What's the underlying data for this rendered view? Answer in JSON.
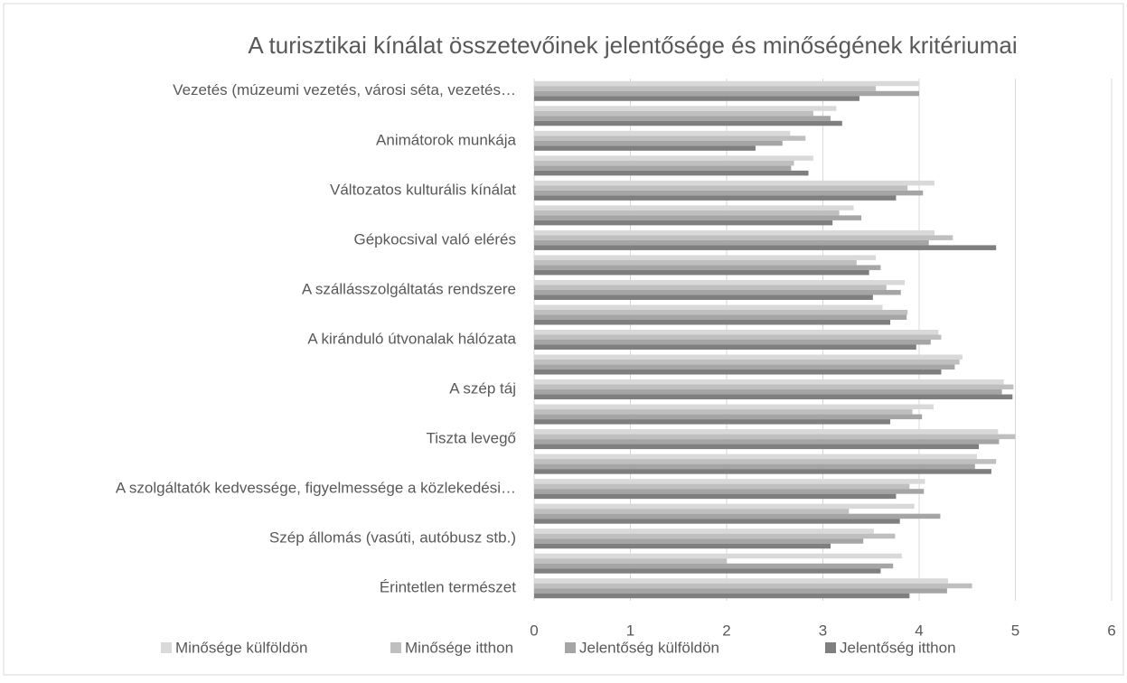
{
  "chart_data": {
    "type": "barh",
    "title": "A turisztikai kínálat összetevőinek jelentősége és minőségének kritériumai",
    "categories": [
      "Vezetés (múzeumi vezetés, városi séta, vezetés…",
      null,
      "Animátorok munkája",
      null,
      "Változatos kulturális kínálat",
      null,
      "Gépkocsival való elérés",
      null,
      "A szállásszolgáltatás rendszere",
      null,
      "A kiránduló útvonalak hálózata",
      null,
      "A szép táj",
      null,
      "Tiszta levegő",
      null,
      "A szolgáltatók kedvessége, figyelmessége a közlekedési…",
      null,
      "Szép állomás (vasúti, autóbusz stb.)",
      null,
      "Érintetlen természet"
    ],
    "series": [
      {
        "name": "Minősége külföldön",
        "color": "#d9d9d9",
        "values": [
          4.0,
          3.14,
          2.66,
          2.9,
          4.16,
          3.32,
          4.16,
          3.55,
          3.85,
          3.62,
          4.2,
          4.45,
          4.88,
          4.15,
          4.82,
          4.6,
          4.06,
          3.95,
          3.53,
          3.82,
          4.3
        ]
      },
      {
        "name": "Minősége itthon",
        "color": "#bfbfbf",
        "values": [
          3.55,
          2.9,
          2.82,
          2.7,
          3.88,
          3.17,
          4.35,
          3.35,
          3.66,
          3.88,
          4.23,
          4.42,
          4.98,
          3.93,
          5.0,
          4.8,
          3.9,
          3.27,
          3.75,
          2.0,
          4.55
        ]
      },
      {
        "name": "Jelentőség külföldön",
        "color": "#a5a5a5",
        "values": [
          4.0,
          3.08,
          2.58,
          2.67,
          4.04,
          3.4,
          4.1,
          3.6,
          3.81,
          3.87,
          4.12,
          4.37,
          4.86,
          4.03,
          4.83,
          4.58,
          4.05,
          4.22,
          3.42,
          3.73,
          4.29
        ]
      },
      {
        "name": "Jelentőség itthon",
        "color": "#7f7f7f",
        "values": [
          3.38,
          3.2,
          2.3,
          2.85,
          3.76,
          3.1,
          4.8,
          3.48,
          3.52,
          3.7,
          3.97,
          4.23,
          4.97,
          3.7,
          4.62,
          4.75,
          3.76,
          3.8,
          3.08,
          3.6,
          3.9
        ]
      }
    ],
    "xlim": [
      0,
      6
    ],
    "xticks": [
      0,
      1,
      2,
      3,
      4,
      5,
      6
    ],
    "grid": true,
    "legend": "bottom"
  }
}
